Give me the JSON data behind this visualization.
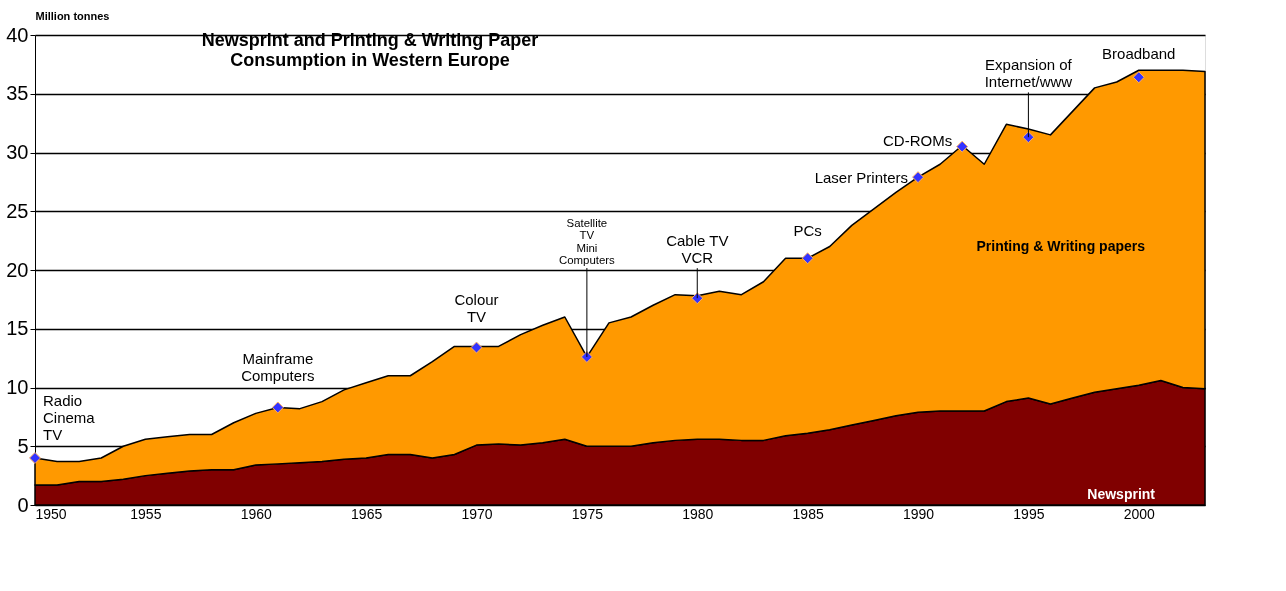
{
  "chart_data": {
    "type": "area",
    "title": "Newsprint and Printing & Writing Paper\nConsumption in Western Europe",
    "ylabel": "Million tonnes",
    "x": [
      1950,
      1951,
      1952,
      1953,
      1954,
      1955,
      1956,
      1957,
      1958,
      1959,
      1960,
      1961,
      1962,
      1963,
      1964,
      1965,
      1966,
      1967,
      1968,
      1969,
      1970,
      1971,
      1972,
      1973,
      1974,
      1975,
      1976,
      1977,
      1978,
      1979,
      1980,
      1981,
      1982,
      1983,
      1984,
      1985,
      1986,
      1987,
      1988,
      1989,
      1990,
      1991,
      1992,
      1993,
      1994,
      1995,
      1996,
      1997,
      1998,
      1999,
      2000,
      2001,
      2002,
      2003
    ],
    "stacked": true,
    "series": [
      {
        "name": "Newsprint",
        "color": "#800000",
        "values": [
          1.7,
          1.7,
          2.0,
          2.0,
          2.2,
          2.5,
          2.7,
          2.9,
          3.0,
          3.0,
          3.4,
          3.5,
          3.6,
          3.7,
          3.9,
          4.0,
          4.3,
          4.3,
          4.0,
          4.3,
          5.1,
          5.2,
          5.1,
          5.3,
          5.6,
          5.0,
          5.0,
          5.0,
          5.3,
          5.5,
          5.6,
          5.6,
          5.5,
          5.5,
          5.9,
          6.1,
          6.4,
          6.8,
          7.2,
          7.6,
          7.9,
          8.0,
          8.0,
          8.0,
          8.8,
          9.1,
          8.6,
          9.1,
          9.6,
          9.9,
          10.2,
          10.6,
          10.0,
          9.9
        ]
      },
      {
        "name": "Printing & Writing papers",
        "color": "#ff9900",
        "values": [
          2.3,
          2.0,
          1.7,
          2.0,
          2.8,
          3.1,
          3.1,
          3.1,
          3.0,
          4.0,
          4.4,
          4.8,
          4.6,
          5.1,
          5.9,
          6.4,
          6.7,
          6.7,
          8.2,
          9.2,
          8.4,
          8.3,
          9.4,
          10.0,
          10.4,
          7.6,
          10.5,
          11.0,
          11.7,
          12.4,
          12.2,
          12.6,
          12.4,
          13.5,
          15.1,
          14.9,
          15.6,
          17.0,
          18.0,
          19.0,
          20.0,
          21.0,
          22.6,
          21.0,
          23.6,
          22.9,
          22.9,
          24.4,
          25.9,
          26.1,
          26.8,
          26.4,
          27.0,
          27.0
        ]
      },
      {
        "type": "scatter",
        "color": "#3333ff",
        "marker": "diamond",
        "x": [
          1950,
          1961,
          1970,
          1975,
          1980,
          1985,
          1990,
          1992,
          1995,
          2000
        ],
        "values": [
          4.0,
          8.3,
          13.4,
          12.6,
          17.6,
          21.0,
          27.9,
          30.5,
          31.3,
          36.4
        ]
      }
    ],
    "annotations": [
      {
        "text": "Radio\nCinema\nTV",
        "x": 1950,
        "y": 4.0
      },
      {
        "text": "Mainframe\nComputers",
        "x": 1961,
        "y": 8.3
      },
      {
        "text": "Colour\nTV",
        "x": 1970,
        "y": 13.4
      },
      {
        "text": "Satellite\nTV\nMini\nComputers",
        "x": 1975,
        "y": 12.6
      },
      {
        "text": "Cable TV\nVCR",
        "x": 1980,
        "y": 17.6
      },
      {
        "text": "PCs",
        "x": 1985,
        "y": 21.0
      },
      {
        "text": "Laser Printers",
        "x": 1990,
        "y": 27.9
      },
      {
        "text": "CD-ROMs",
        "x": 1992,
        "y": 30.5
      },
      {
        "text": "Expansion of\nInternet/www",
        "x": 1995,
        "y": 31.3
      },
      {
        "text": "Broadband",
        "x": 2000,
        "y": 36.4
      }
    ],
    "xlim": [
      1950,
      2003
    ],
    "xticks": [
      1950,
      1955,
      1960,
      1965,
      1970,
      1975,
      1980,
      1985,
      1990,
      1995,
      2000
    ],
    "ylim": [
      0,
      40
    ],
    "yticks": [
      0,
      5,
      10,
      15,
      20,
      25,
      30,
      35,
      40
    ],
    "grid": "y",
    "legend": false
  }
}
